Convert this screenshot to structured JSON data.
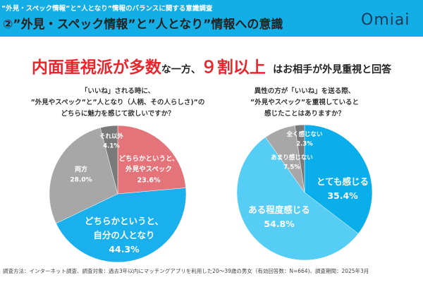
{
  "header": {
    "subtitle": "”外見・スペック情報”と”人となり”情報のバランスに関する意識調査",
    "title": "②”外見・スペック情報”と”人となり”情報への意識",
    "logo": "Omiai"
  },
  "headline": {
    "part1": "内面重視派が多数",
    "part2": "な一方、",
    "part3": "９割以上",
    "part4": "はお相手が外見重視と回答"
  },
  "chart_data": [
    {
      "type": "pie",
      "title_lines": [
        "「いいね」される時に、",
        "”外見やスペック”と”人となり（人柄、その人らしさ)”の",
        "どちらに魅力を感じて欲しいですか？"
      ],
      "slices": [
        {
          "label": [
            "どちらかというと、",
            "外見やスペック"
          ],
          "value": 23.6,
          "display": "23.6%",
          "color": "#e4747a"
        },
        {
          "label": [
            "どちらかというと、",
            "自分の人となり"
          ],
          "value": 44.3,
          "display": "44.3%",
          "color": "#1ab0ee"
        },
        {
          "label": [
            "両方"
          ],
          "value": 28.0,
          "display": "28.0%",
          "color": "#a7a7a7"
        },
        {
          "label": [
            "それ以外"
          ],
          "value": 4.1,
          "display": "4.1%",
          "color": "#7a7a7a"
        }
      ]
    },
    {
      "type": "pie",
      "title_lines": [
        "異性の方が「いいね」を送る際、",
        "”外見やスペック”を重視していると",
        "感じたことはありますか？"
      ],
      "slices": [
        {
          "label": [
            "とても感じる"
          ],
          "value": 35.4,
          "display": "35.4%",
          "color": "#0aaeea"
        },
        {
          "label": [
            "ある程度感じる"
          ],
          "value": 54.8,
          "display": "54.8%",
          "color": "#55cdf5"
        },
        {
          "label": [
            "あまり感じない"
          ],
          "value": 7.5,
          "display": "7.5%",
          "color": "#a7a7a7"
        },
        {
          "label": [
            "全く感じない"
          ],
          "value": 2.3,
          "display": "2.3%",
          "color": "#7a7a7a"
        }
      ]
    }
  ],
  "footer": "調査方法：インターネット調査、調査対象：過去3年以内にマッチングアプリを利用した20～39歳の男女（有効回答数：N=664)、調査期間：2025年3月"
}
